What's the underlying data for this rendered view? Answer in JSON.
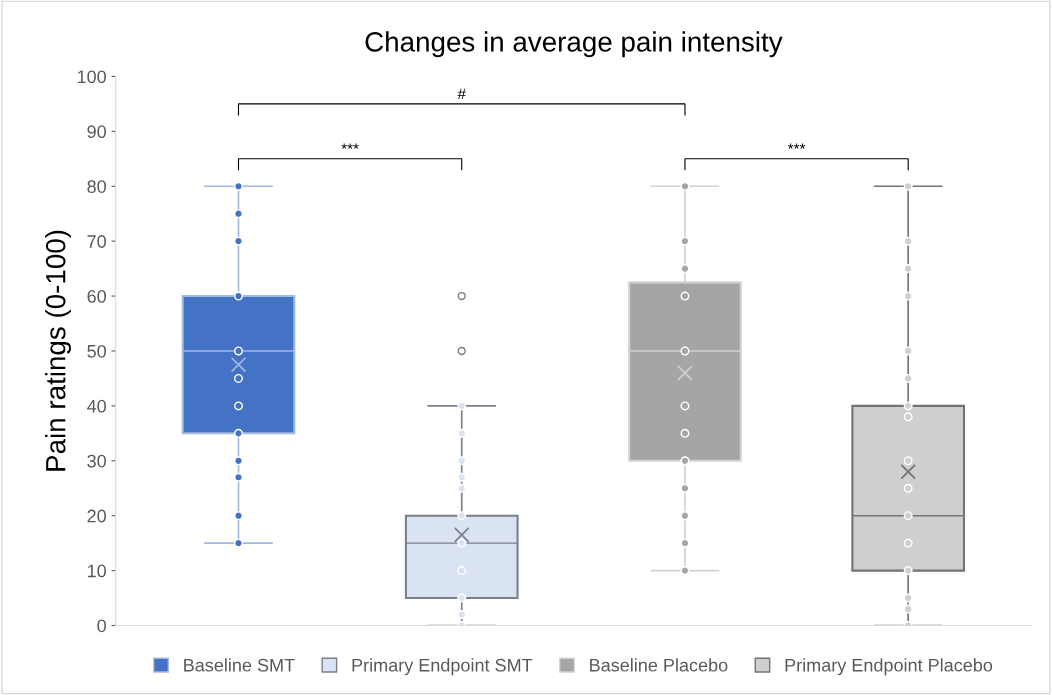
{
  "chart_data": {
    "type": "box",
    "title": "Changes in average pain intensity",
    "ylabel": "Pain ratings (0-100)",
    "categories": [
      null,
      null,
      null,
      null
    ],
    "series": [
      {
        "name": "Baseline SMT",
        "color": "#4472c4",
        "boxes": [
          {
            "low": 15,
            "q1": 35,
            "median": 50,
            "q3": 60,
            "high": 80,
            "mean": 47.5
          },
          null,
          null,
          null
        ]
      },
      {
        "name": "Primary Endpoint SMT",
        "color": "#dae3f3",
        "boxes": [
          null,
          {
            "low": 0,
            "q1": 5,
            "median": 15,
            "q3": 20,
            "high": 40,
            "mean": 16.5,
            "outliers": [
              60,
              50
            ]
          },
          null,
          null
        ]
      },
      {
        "name": "Baseline Placebo",
        "color": "#a5a5a5",
        "boxes": [
          null,
          null,
          {
            "low": 10,
            "q1": 30,
            "median": 50,
            "q3": 62.5,
            "high": 80,
            "mean": 46
          },
          null
        ]
      },
      {
        "name": "Primary Endpoint Placebo",
        "color": "#d0cece",
        "boxes": [
          null,
          null,
          null,
          {
            "low": 0,
            "q1": 10,
            "median": 20,
            "q3": 40,
            "high": 80,
            "mean": 28
          }
        ]
      },
      {
        "type": "scatter",
        "colors": [
          "#4472c4",
          "#dae3f3",
          "#a5a5a5",
          "#d0cece"
        ],
        "values": [
          80,
          40,
          80,
          80
        ]
      },
      {
        "type": "scatter",
        "colors": [
          "#4472c4",
          "#dae3f3",
          "#a5a5a5",
          "#d0cece"
        ],
        "values": [
          75,
          35,
          70,
          70
        ]
      },
      {
        "type": "scatter",
        "colors": [
          "#4472c4",
          "#dae3f3",
          "#a5a5a5",
          "#d0cece"
        ],
        "values": [
          70,
          30,
          65,
          65
        ]
      },
      {
        "type": "scatter",
        "colors": [
          "#4472c4",
          "#dae3f3",
          "#a5a5a5",
          "#d0cece"
        ],
        "values": [
          60,
          27,
          60,
          60
        ]
      },
      {
        "type": "scatter",
        "colors": [
          "#4472c4",
          "#dae3f3",
          "#a5a5a5",
          "#d0cece"
        ],
        "values": [
          50,
          25,
          50,
          50
        ]
      },
      {
        "type": "scatter",
        "colors": [
          "#4472c4",
          "#dae3f3",
          "#a5a5a5",
          "#d0cece"
        ],
        "values": [
          45,
          20,
          40,
          45
        ]
      },
      {
        "type": "scatter",
        "colors": [
          "#4472c4",
          "#dae3f3",
          "#a5a5a5",
          "#d0cece"
        ],
        "values": [
          40,
          15,
          35,
          40
        ]
      },
      {
        "type": "scatter",
        "colors": [
          "#4472c4",
          "#dae3f3",
          "#a5a5a5",
          "#d0cece"
        ],
        "values": [
          35,
          10,
          30,
          38
        ]
      },
      {
        "type": "scatter",
        "colors": [
          "#4472c4",
          "#dae3f3",
          "#a5a5a5",
          "#d0cece"
        ],
        "values": [
          30,
          5,
          25,
          30
        ]
      },
      {
        "type": "scatter",
        "colors": [
          "#4472c4",
          "#dae3f3",
          "#a5a5a5",
          "#d0cece"
        ],
        "values": [
          27,
          2,
          20,
          25
        ]
      },
      {
        "type": "scatter",
        "colors": [
          "#4472c4",
          "#dae3f3",
          "#a5a5a5",
          "#d0cece"
        ],
        "values": [
          20,
          0,
          15,
          20
        ]
      },
      {
        "type": "scatter",
        "colors": [
          "#4472c4",
          "#dae3f3",
          "#a5a5a5",
          "#d0cece"
        ],
        "values": [
          15,
          null,
          10,
          15
        ]
      },
      {
        "type": "scatter",
        "colors": [
          "#4472c4",
          "#dae3f3",
          "#a5a5a5",
          "#d0cece"
        ],
        "values": [
          null,
          null,
          null,
          10
        ]
      },
      {
        "type": "scatter",
        "colors": [
          "#4472c4",
          "#dae3f3",
          "#a5a5a5",
          "#d0cece"
        ],
        "values": [
          null,
          null,
          null,
          5
        ]
      },
      {
        "type": "scatter",
        "colors": [
          "#4472c4",
          "#dae3f3",
          "#a5a5a5",
          "#d0cece"
        ],
        "values": [
          null,
          null,
          null,
          3
        ]
      },
      {
        "type": "scatter",
        "colors": [
          "#4472c4",
          "#dae3f3",
          "#a5a5a5",
          "#d0cece"
        ],
        "values": [
          null,
          null,
          null,
          0
        ]
      }
    ],
    "ylim": [
      0,
      100
    ],
    "yticks": [
      0,
      10,
      20,
      30,
      40,
      50,
      60,
      70,
      80,
      90,
      100
    ],
    "grid": false,
    "legend": "bottom",
    "annotations": [
      "***",
      "***",
      "#"
    ]
  }
}
